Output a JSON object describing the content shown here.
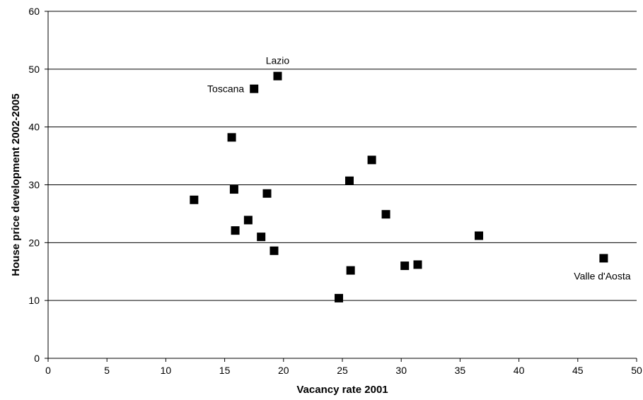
{
  "chart_data": {
    "type": "scatter",
    "xlabel": "Vacancy rate 2001",
    "ylabel": "House price development 2002-2005",
    "xlim": [
      0,
      50
    ],
    "ylim": [
      0,
      60
    ],
    "xticks": [
      0,
      5,
      10,
      15,
      20,
      25,
      30,
      35,
      40,
      45,
      50
    ],
    "yticks": [
      0,
      10,
      20,
      30,
      40,
      50,
      60
    ],
    "grid": "horizontal major lines",
    "legend": "none",
    "marker": "square",
    "marker_color": "#000000",
    "points": [
      {
        "x": 12.4,
        "y": 27.4
      },
      {
        "x": 15.6,
        "y": 38.2
      },
      {
        "x": 15.8,
        "y": 29.2
      },
      {
        "x": 15.9,
        "y": 22.1
      },
      {
        "x": 17.0,
        "y": 23.9
      },
      {
        "x": 17.5,
        "y": 46.6,
        "label": "Toscana"
      },
      {
        "x": 18.1,
        "y": 21.0
      },
      {
        "x": 18.6,
        "y": 28.5
      },
      {
        "x": 19.2,
        "y": 18.6
      },
      {
        "x": 19.5,
        "y": 48.8,
        "label": "Lazio"
      },
      {
        "x": 24.7,
        "y": 10.4
      },
      {
        "x": 25.6,
        "y": 30.7
      },
      {
        "x": 25.7,
        "y": 15.2
      },
      {
        "x": 27.5,
        "y": 34.3
      },
      {
        "x": 28.7,
        "y": 24.9
      },
      {
        "x": 30.3,
        "y": 16.0
      },
      {
        "x": 31.4,
        "y": 16.2
      },
      {
        "x": 36.6,
        "y": 21.2
      },
      {
        "x": 47.2,
        "y": 17.3,
        "label": "Valle d'Aosta"
      }
    ]
  }
}
